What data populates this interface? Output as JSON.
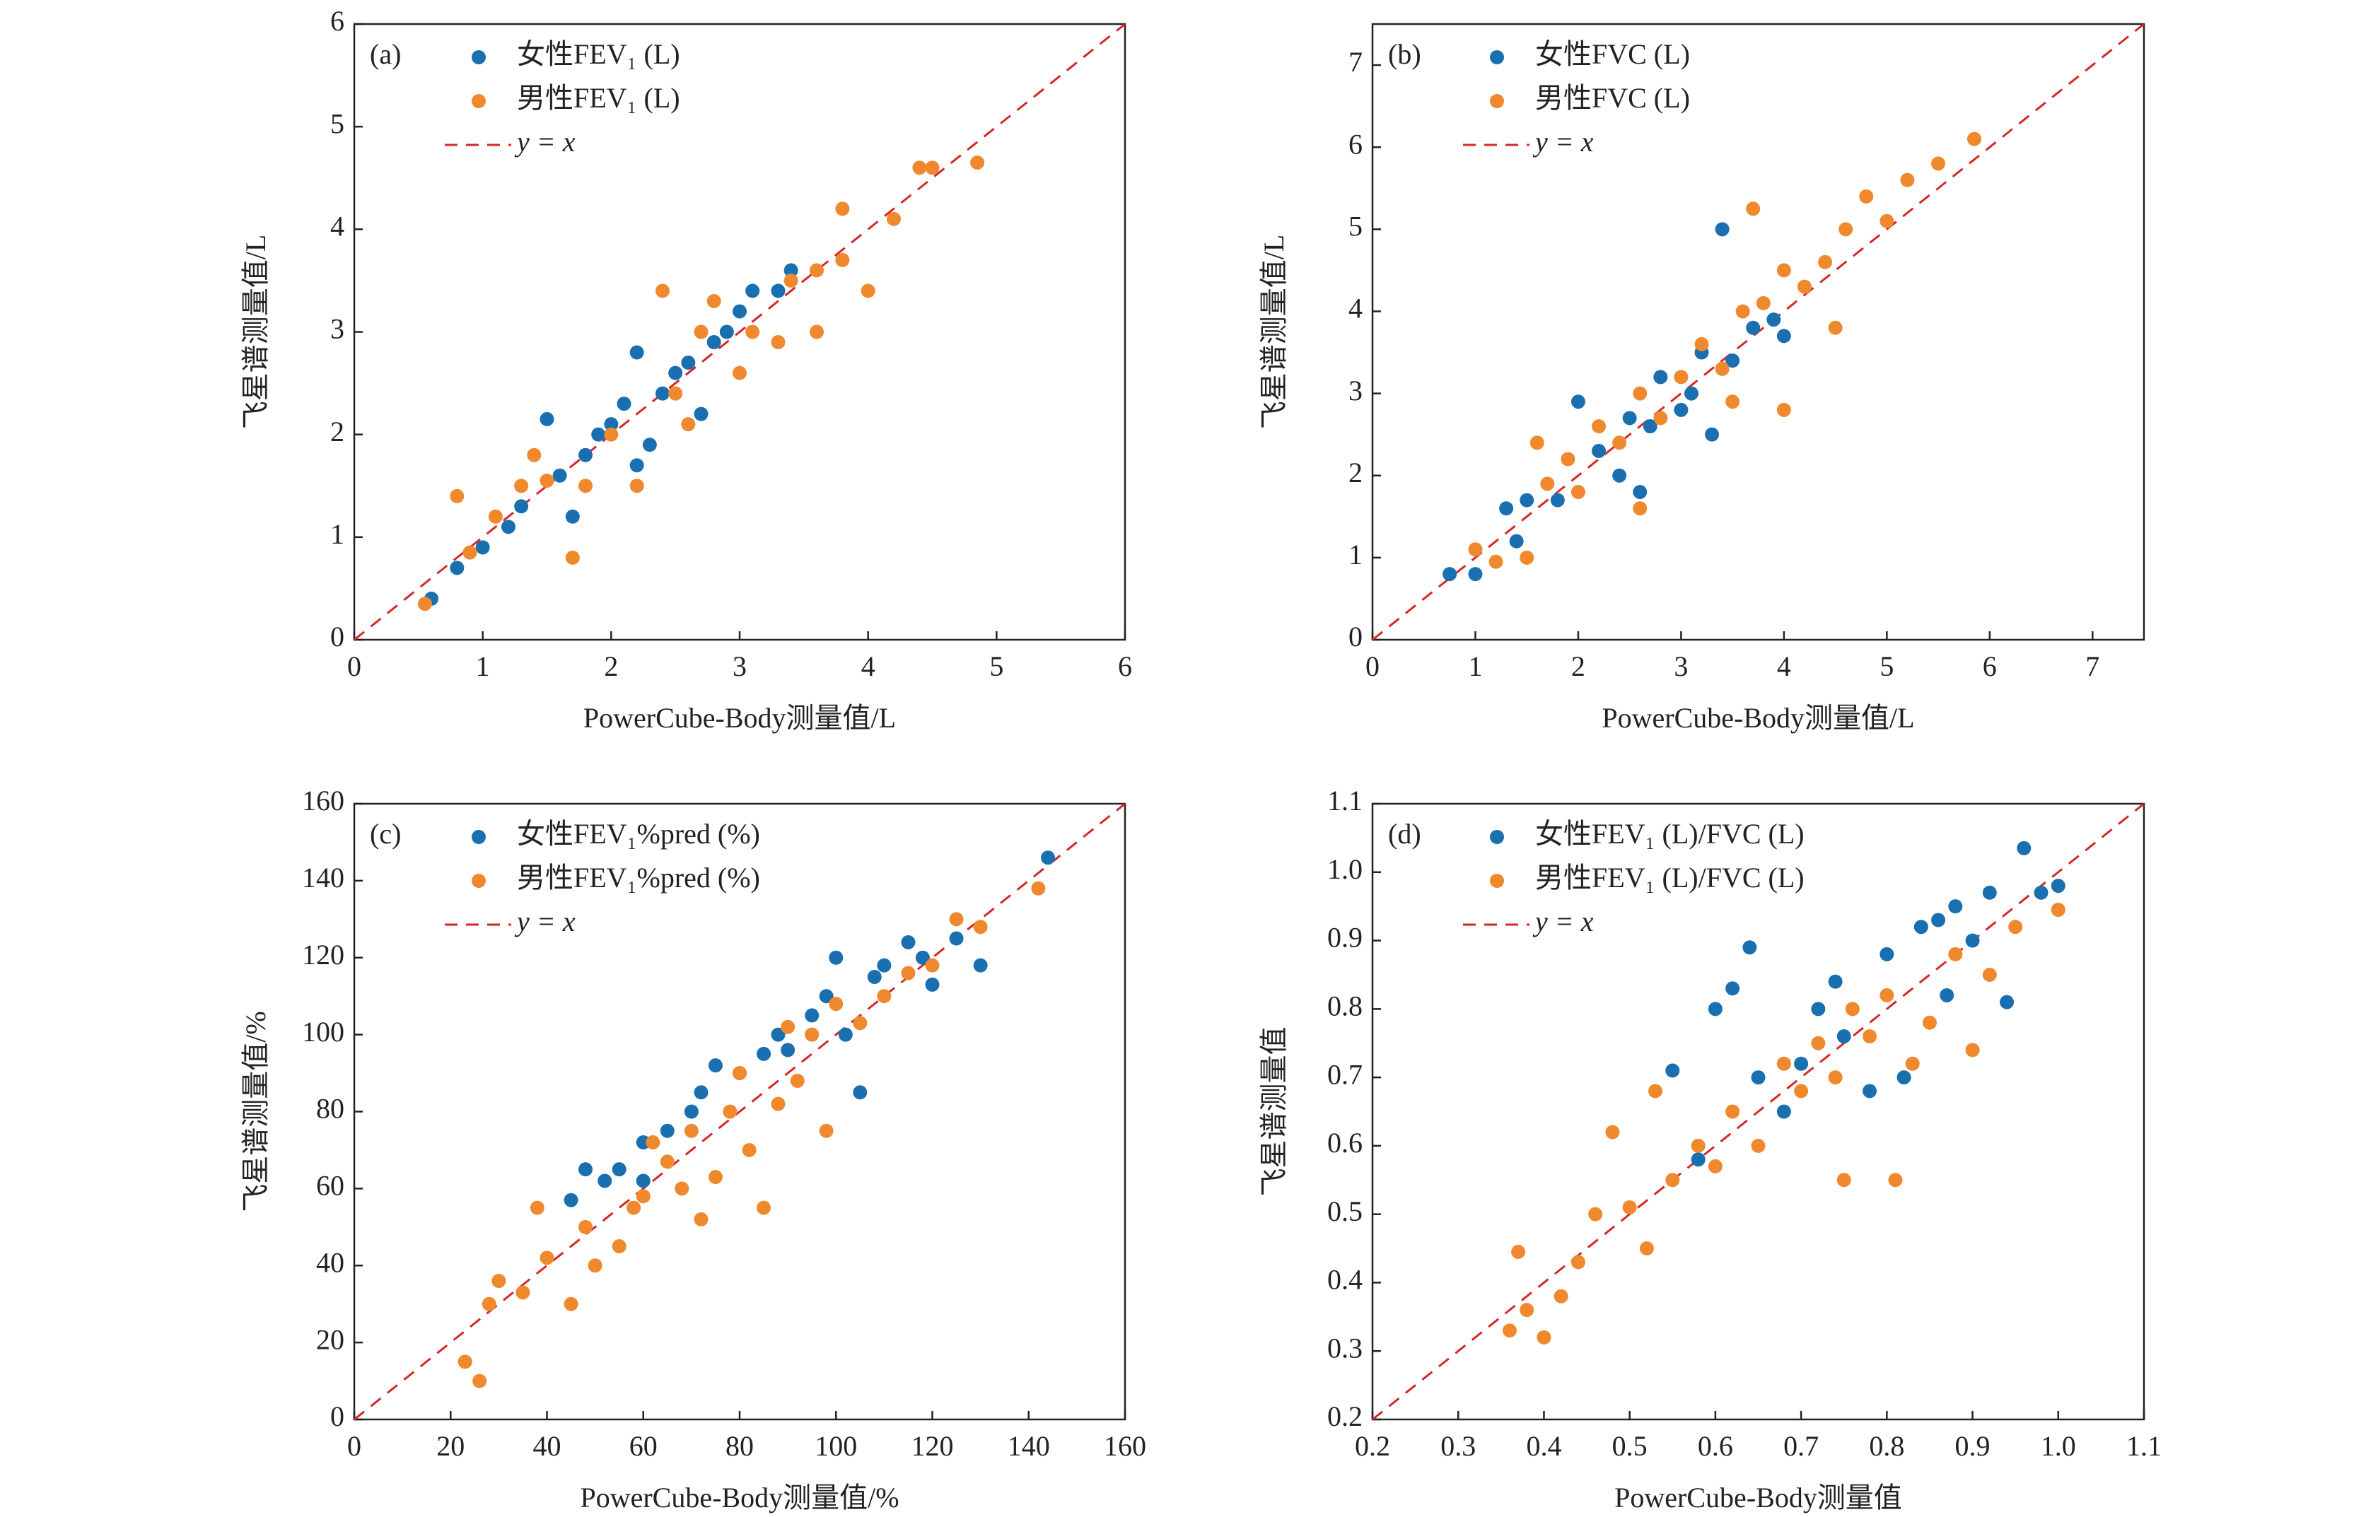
{
  "chart_data": [
    {
      "type": "scatter",
      "panel": "(a)",
      "x_label": "PowerCube-Body测量值/L",
      "y_label": "飞星谱测量值/L",
      "xlim": [
        0,
        6
      ],
      "ylim": [
        0,
        6
      ],
      "xticks": [
        0,
        1,
        2,
        3,
        4,
        5,
        6
      ],
      "yticks": [
        0,
        1,
        2,
        3,
        4,
        5,
        6
      ],
      "reference_line": {
        "name": "y = x",
        "color": "#d62728"
      },
      "series": [
        {
          "name": "女性FEV₁ (L)",
          "color": "#1a6fb0",
          "x": [
            0.6,
            0.8,
            1.0,
            1.2,
            1.3,
            1.5,
            1.6,
            1.7,
            1.8,
            1.9,
            2.0,
            2.1,
            2.2,
            2.3,
            2.4,
            2.5,
            2.6,
            2.7,
            2.8,
            2.9,
            3.0,
            3.1,
            3.3,
            3.4,
            2.2
          ],
          "values": [
            0.4,
            0.7,
            0.9,
            1.1,
            1.3,
            2.15,
            1.6,
            1.2,
            1.8,
            2.0,
            2.1,
            2.3,
            2.8,
            1.9,
            2.4,
            2.6,
            2.7,
            2.2,
            2.9,
            3.0,
            3.2,
            3.4,
            3.4,
            3.6,
            1.7
          ]
        },
        {
          "name": "男性FEV₁ (L)",
          "color": "#f0892e",
          "x": [
            0.55,
            0.8,
            0.9,
            1.1,
            1.3,
            1.4,
            1.7,
            1.8,
            2.0,
            2.2,
            2.4,
            2.5,
            2.6,
            2.8,
            3.0,
            3.1,
            3.3,
            3.4,
            3.6,
            3.6,
            3.8,
            3.8,
            4.0,
            4.2,
            4.4,
            4.5,
            4.85,
            1.5,
            2.7
          ],
          "values": [
            0.35,
            1.4,
            0.85,
            1.2,
            1.5,
            1.8,
            0.8,
            1.5,
            2.0,
            1.5,
            3.4,
            2.4,
            2.1,
            3.3,
            2.6,
            3.0,
            2.9,
            3.5,
            3.6,
            3.0,
            3.7,
            4.2,
            3.4,
            4.1,
            4.6,
            4.6,
            4.65,
            1.55,
            3.0
          ]
        }
      ]
    },
    {
      "type": "scatter",
      "panel": "(b)",
      "x_label": "PowerCube-Body测量值/L",
      "y_label": "飞星谱测量值/L",
      "xlim": [
        0,
        7.5
      ],
      "ylim": [
        0,
        7.5
      ],
      "xticks": [
        0,
        1,
        2,
        3,
        4,
        5,
        6,
        7
      ],
      "yticks": [
        0,
        1,
        2,
        3,
        4,
        5,
        6,
        7
      ],
      "reference_line": {
        "name": "y = x",
        "color": "#d62728"
      },
      "series": [
        {
          "name": "女性FVC (L)",
          "color": "#1a6fb0",
          "x": [
            0.75,
            1.0,
            1.3,
            1.4,
            1.5,
            1.8,
            2.0,
            2.2,
            2.4,
            2.5,
            2.7,
            2.8,
            3.0,
            3.2,
            3.3,
            3.4,
            3.5,
            3.7,
            3.9,
            4.0,
            2.6,
            3.1
          ],
          "values": [
            0.8,
            0.8,
            1.6,
            1.2,
            1.7,
            1.7,
            2.9,
            2.3,
            2.0,
            2.7,
            2.6,
            3.2,
            2.8,
            3.5,
            2.5,
            5.0,
            3.4,
            3.8,
            3.9,
            3.7,
            1.8,
            3.0
          ]
        },
        {
          "name": "男性FVC (L)",
          "color": "#f0892e",
          "x": [
            1.0,
            1.2,
            1.5,
            1.6,
            1.7,
            1.9,
            2.0,
            2.2,
            2.4,
            2.6,
            2.8,
            3.0,
            3.2,
            3.4,
            3.5,
            3.6,
            3.7,
            3.8,
            4.0,
            4.2,
            4.4,
            4.5,
            4.6,
            4.8,
            5.0,
            5.2,
            5.5,
            5.85,
            2.6,
            4.0
          ],
          "values": [
            1.1,
            0.95,
            1.0,
            2.4,
            1.9,
            2.2,
            1.8,
            2.6,
            2.4,
            3.0,
            2.7,
            3.2,
            3.6,
            3.3,
            2.9,
            4.0,
            5.25,
            4.1,
            4.5,
            4.3,
            4.6,
            3.8,
            5.0,
            5.4,
            5.1,
            5.6,
            5.8,
            6.1,
            1.6,
            2.8
          ]
        }
      ]
    },
    {
      "type": "scatter",
      "panel": "(c)",
      "x_label": "PowerCube-Body测量值/%",
      "y_label": "飞星谱测量值/%",
      "xlim": [
        0,
        160
      ],
      "ylim": [
        0,
        160
      ],
      "xticks": [
        0,
        20,
        40,
        60,
        80,
        100,
        120,
        140,
        160
      ],
      "yticks": [
        0,
        20,
        40,
        60,
        80,
        100,
        120,
        140,
        160
      ],
      "reference_line": {
        "name": "y = x",
        "color": "#d62728"
      },
      "series": [
        {
          "name": "女性FEV₁%pred (%)",
          "color": "#1a6fb0",
          "x": [
            45,
            48,
            52,
            55,
            60,
            65,
            70,
            72,
            75,
            80,
            85,
            88,
            90,
            95,
            98,
            100,
            102,
            105,
            108,
            110,
            115,
            118,
            120,
            125,
            130,
            144,
            60
          ],
          "values": [
            57,
            65,
            62,
            65,
            62,
            75,
            80,
            85,
            92,
            90,
            95,
            100,
            96,
            105,
            110,
            120,
            100,
            85,
            115,
            118,
            124,
            120,
            113,
            125,
            118,
            146,
            72
          ]
        },
        {
          "name": "男性FEV₁%pred (%)",
          "color": "#f0892e",
          "x": [
            23,
            26,
            28,
            30,
            35,
            38,
            40,
            45,
            48,
            50,
            55,
            58,
            60,
            62,
            65,
            68,
            70,
            72,
            75,
            78,
            80,
            82,
            85,
            88,
            90,
            92,
            95,
            98,
            100,
            105,
            110,
            115,
            120,
            125,
            130,
            142
          ],
          "values": [
            15,
            10,
            30,
            36,
            33,
            55,
            42,
            30,
            50,
            40,
            45,
            55,
            58,
            72,
            67,
            60,
            75,
            52,
            63,
            80,
            90,
            70,
            55,
            82,
            102,
            88,
            100,
            75,
            108,
            103,
            110,
            116,
            118,
            130,
            128,
            138
          ]
        }
      ]
    },
    {
      "type": "scatter",
      "panel": "(d)",
      "x_label": "PowerCube-Body测量值",
      "y_label": "飞星谱测量值",
      "xlim": [
        0.2,
        1.1
      ],
      "ylim": [
        0.2,
        1.1
      ],
      "xticks": [
        0.2,
        0.3,
        0.4,
        0.5,
        0.6,
        0.7,
        0.8,
        0.9,
        {
          "value": 1,
          "label": "1.0"
        },
        1.1
      ],
      "yticks": [
        0.2,
        0.3,
        0.4,
        0.5,
        0.6,
        0.7,
        0.8,
        0.9,
        {
          "value": 1,
          "label": "1.0"
        },
        1.1
      ],
      "reference_line": {
        "name": "y = x",
        "color": "#d62728"
      },
      "series": [
        {
          "name": "女性FEV₁ (L)/FVC (L)",
          "color": "#1a6fb0",
          "x": [
            0.55,
            0.6,
            0.62,
            0.64,
            0.65,
            0.68,
            0.7,
            0.72,
            0.74,
            0.75,
            0.78,
            0.8,
            0.82,
            0.84,
            0.86,
            0.88,
            0.9,
            0.92,
            0.94,
            0.96,
            0.98,
            1.0,
            0.87,
            0.58
          ],
          "values": [
            0.71,
            0.8,
            0.83,
            0.89,
            0.7,
            0.65,
            0.72,
            0.8,
            0.84,
            0.76,
            0.68,
            0.88,
            0.7,
            0.92,
            0.93,
            0.95,
            0.9,
            0.97,
            0.81,
            1.035,
            0.97,
            0.98,
            0.82,
            0.58
          ]
        },
        {
          "name": "男性FEV₁ (L)/FVC (L)",
          "color": "#f0892e",
          "x": [
            0.36,
            0.37,
            0.38,
            0.4,
            0.42,
            0.44,
            0.46,
            0.48,
            0.5,
            0.52,
            0.53,
            0.55,
            0.58,
            0.6,
            0.62,
            0.65,
            0.68,
            0.7,
            0.72,
            0.74,
            0.75,
            0.78,
            0.8,
            0.81,
            0.83,
            0.85,
            0.88,
            0.9,
            0.92,
            0.95,
            1.0,
            0.76
          ],
          "values": [
            0.33,
            0.445,
            0.36,
            0.32,
            0.38,
            0.43,
            0.5,
            0.62,
            0.51,
            0.45,
            0.68,
            0.55,
            0.6,
            0.57,
            0.65,
            0.6,
            0.72,
            0.68,
            0.75,
            0.7,
            0.55,
            0.76,
            0.82,
            0.55,
            0.72,
            0.78,
            0.88,
            0.74,
            0.85,
            0.92,
            0.945,
            0.8
          ]
        }
      ]
    }
  ]
}
